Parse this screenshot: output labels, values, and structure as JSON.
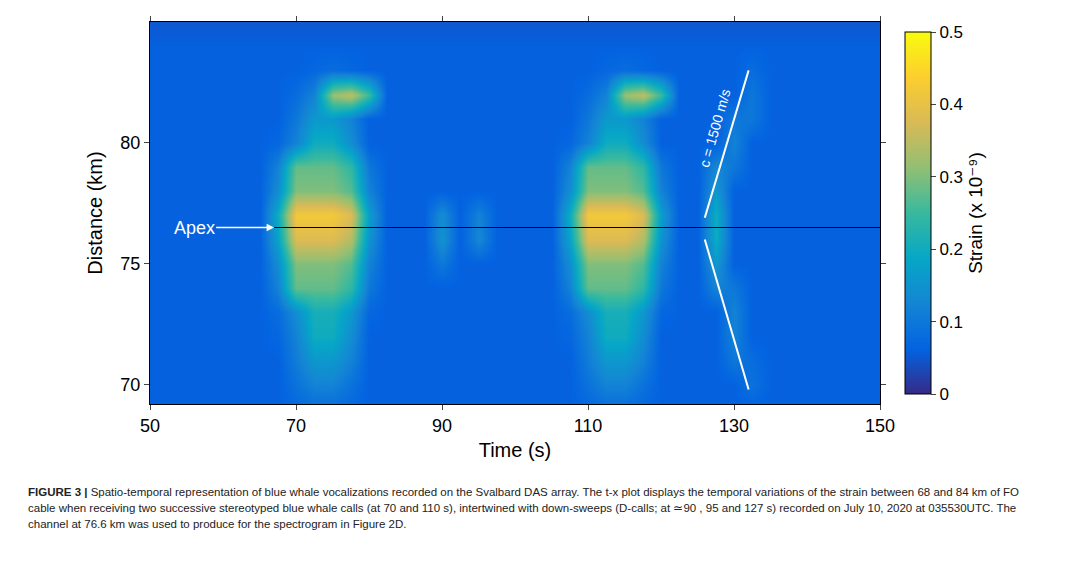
{
  "chart_data": {
    "type": "heatmap",
    "x_label": "Time (s)",
    "y_label": "Distance (km)",
    "xlim": [
      50,
      150
    ],
    "xticks": [
      50,
      70,
      90,
      110,
      130,
      150
    ],
    "ylim": [
      69.2,
      85
    ],
    "yticks": [
      70,
      75,
      80
    ],
    "zlim": [
      0,
      0.5
    ],
    "zticks": [
      0,
      0.1,
      0.2,
      0.3,
      0.4,
      0.5
    ],
    "colorbar_title": "Strain (x 10⁻⁹)",
    "annotations": [
      "Apex",
      "c = 1500 m/s"
    ],
    "x": [
      50,
      52.5,
      55,
      57.5,
      60,
      62.5,
      65,
      67.5,
      70,
      72.5,
      75,
      77.5,
      80,
      82.5,
      85,
      87.5,
      90,
      92.5,
      95,
      97.5,
      100,
      102.5,
      105,
      107.5,
      110,
      112.5,
      115,
      117.5,
      120,
      122.5,
      125,
      127.5,
      130,
      132.5,
      135,
      137.5,
      140,
      142.5,
      145,
      147.5,
      150
    ],
    "y": [
      69,
      70,
      71,
      72,
      73,
      74,
      75,
      76,
      77,
      78,
      79,
      80,
      81,
      82,
      83,
      84,
      85
    ],
    "z": [
      [
        0.06,
        0.06,
        0.06,
        0.06,
        0.06,
        0.06,
        0.06,
        0.06,
        0.07,
        0.08,
        0.08,
        0.07,
        0.06,
        0.06,
        0.06,
        0.06,
        0.06,
        0.06,
        0.06,
        0.06,
        0.06,
        0.06,
        0.06,
        0.06,
        0.07,
        0.08,
        0.08,
        0.07,
        0.06,
        0.06,
        0.06,
        0.06,
        0.06,
        0.06,
        0.06,
        0.06,
        0.06,
        0.06,
        0.06,
        0.06,
        0.06
      ],
      [
        0.06,
        0.06,
        0.06,
        0.06,
        0.06,
        0.06,
        0.06,
        0.06,
        0.09,
        0.12,
        0.12,
        0.09,
        0.06,
        0.06,
        0.06,
        0.06,
        0.06,
        0.06,
        0.06,
        0.06,
        0.06,
        0.06,
        0.06,
        0.06,
        0.09,
        0.12,
        0.12,
        0.09,
        0.06,
        0.06,
        0.06,
        0.06,
        0.06,
        0.09,
        0.06,
        0.06,
        0.06,
        0.06,
        0.06,
        0.06,
        0.06
      ],
      [
        0.06,
        0.06,
        0.06,
        0.06,
        0.06,
        0.06,
        0.06,
        0.06,
        0.11,
        0.16,
        0.16,
        0.12,
        0.06,
        0.06,
        0.06,
        0.06,
        0.06,
        0.06,
        0.06,
        0.06,
        0.06,
        0.06,
        0.06,
        0.06,
        0.11,
        0.16,
        0.16,
        0.12,
        0.06,
        0.06,
        0.06,
        0.06,
        0.1,
        0.08,
        0.06,
        0.06,
        0.06,
        0.06,
        0.06,
        0.06,
        0.06
      ],
      [
        0.06,
        0.06,
        0.06,
        0.06,
        0.06,
        0.06,
        0.06,
        0.07,
        0.12,
        0.2,
        0.2,
        0.14,
        0.06,
        0.06,
        0.06,
        0.06,
        0.06,
        0.06,
        0.06,
        0.06,
        0.06,
        0.06,
        0.06,
        0.07,
        0.12,
        0.2,
        0.2,
        0.14,
        0.06,
        0.06,
        0.06,
        0.06,
        0.12,
        0.06,
        0.06,
        0.06,
        0.06,
        0.06,
        0.06,
        0.06,
        0.06
      ],
      [
        0.06,
        0.06,
        0.06,
        0.06,
        0.06,
        0.06,
        0.06,
        0.08,
        0.14,
        0.21,
        0.21,
        0.16,
        0.07,
        0.06,
        0.06,
        0.06,
        0.06,
        0.06,
        0.06,
        0.06,
        0.06,
        0.06,
        0.06,
        0.08,
        0.14,
        0.21,
        0.21,
        0.16,
        0.07,
        0.06,
        0.06,
        0.06,
        0.12,
        0.06,
        0.06,
        0.06,
        0.06,
        0.06,
        0.06,
        0.06,
        0.06
      ],
      [
        0.06,
        0.06,
        0.06,
        0.06,
        0.06,
        0.06,
        0.06,
        0.12,
        0.28,
        0.28,
        0.28,
        0.24,
        0.1,
        0.06,
        0.06,
        0.06,
        0.06,
        0.06,
        0.06,
        0.06,
        0.06,
        0.06,
        0.06,
        0.12,
        0.28,
        0.28,
        0.28,
        0.24,
        0.1,
        0.06,
        0.06,
        0.12,
        0.1,
        0.06,
        0.06,
        0.06,
        0.06,
        0.06,
        0.06,
        0.06,
        0.06
      ],
      [
        0.06,
        0.06,
        0.06,
        0.06,
        0.06,
        0.06,
        0.06,
        0.14,
        0.3,
        0.3,
        0.3,
        0.27,
        0.12,
        0.06,
        0.06,
        0.06,
        0.1,
        0.06,
        0.06,
        0.06,
        0.06,
        0.06,
        0.06,
        0.14,
        0.3,
        0.3,
        0.3,
        0.27,
        0.12,
        0.06,
        0.06,
        0.16,
        0.06,
        0.06,
        0.06,
        0.06,
        0.06,
        0.06,
        0.06,
        0.06,
        0.06
      ],
      [
        0.06,
        0.06,
        0.06,
        0.06,
        0.06,
        0.06,
        0.06,
        0.18,
        0.38,
        0.38,
        0.38,
        0.34,
        0.15,
        0.06,
        0.06,
        0.06,
        0.15,
        0.06,
        0.13,
        0.06,
        0.06,
        0.06,
        0.06,
        0.18,
        0.38,
        0.38,
        0.38,
        0.34,
        0.15,
        0.06,
        0.06,
        0.2,
        0.06,
        0.06,
        0.06,
        0.06,
        0.06,
        0.06,
        0.06,
        0.06,
        0.06
      ],
      [
        0.06,
        0.06,
        0.06,
        0.06,
        0.06,
        0.06,
        0.06,
        0.2,
        0.42,
        0.42,
        0.42,
        0.38,
        0.17,
        0.06,
        0.06,
        0.06,
        0.14,
        0.06,
        0.12,
        0.06,
        0.06,
        0.06,
        0.06,
        0.2,
        0.42,
        0.42,
        0.42,
        0.38,
        0.17,
        0.06,
        0.06,
        0.2,
        0.06,
        0.06,
        0.06,
        0.06,
        0.06,
        0.06,
        0.06,
        0.06,
        0.06
      ],
      [
        0.06,
        0.06,
        0.06,
        0.06,
        0.06,
        0.06,
        0.06,
        0.14,
        0.3,
        0.3,
        0.3,
        0.27,
        0.12,
        0.06,
        0.06,
        0.06,
        0.06,
        0.06,
        0.06,
        0.06,
        0.06,
        0.06,
        0.06,
        0.14,
        0.3,
        0.3,
        0.3,
        0.27,
        0.12,
        0.06,
        0.06,
        0.16,
        0.06,
        0.06,
        0.06,
        0.06,
        0.06,
        0.06,
        0.06,
        0.06,
        0.06
      ],
      [
        0.06,
        0.06,
        0.06,
        0.06,
        0.06,
        0.06,
        0.06,
        0.12,
        0.28,
        0.28,
        0.28,
        0.24,
        0.1,
        0.06,
        0.06,
        0.06,
        0.06,
        0.06,
        0.06,
        0.06,
        0.06,
        0.06,
        0.06,
        0.12,
        0.28,
        0.28,
        0.28,
        0.24,
        0.1,
        0.06,
        0.06,
        0.13,
        0.1,
        0.06,
        0.06,
        0.06,
        0.06,
        0.06,
        0.06,
        0.06,
        0.06
      ],
      [
        0.06,
        0.06,
        0.06,
        0.06,
        0.06,
        0.06,
        0.06,
        0.07,
        0.12,
        0.2,
        0.2,
        0.14,
        0.06,
        0.06,
        0.06,
        0.06,
        0.06,
        0.06,
        0.06,
        0.06,
        0.06,
        0.06,
        0.06,
        0.07,
        0.12,
        0.2,
        0.2,
        0.14,
        0.06,
        0.06,
        0.06,
        0.06,
        0.12,
        0.06,
        0.06,
        0.06,
        0.06,
        0.06,
        0.06,
        0.06,
        0.06
      ],
      [
        0.06,
        0.06,
        0.06,
        0.06,
        0.06,
        0.06,
        0.06,
        0.06,
        0.1,
        0.16,
        0.16,
        0.12,
        0.06,
        0.06,
        0.06,
        0.06,
        0.06,
        0.06,
        0.06,
        0.06,
        0.06,
        0.06,
        0.06,
        0.06,
        0.1,
        0.16,
        0.16,
        0.12,
        0.06,
        0.06,
        0.06,
        0.06,
        0.1,
        0.1,
        0.06,
        0.06,
        0.06,
        0.06,
        0.06,
        0.06,
        0.06
      ],
      [
        0.06,
        0.06,
        0.06,
        0.06,
        0.06,
        0.06,
        0.06,
        0.06,
        0.08,
        0.12,
        0.32,
        0.35,
        0.25,
        0.06,
        0.06,
        0.06,
        0.06,
        0.06,
        0.06,
        0.06,
        0.06,
        0.06,
        0.06,
        0.06,
        0.08,
        0.12,
        0.32,
        0.35,
        0.25,
        0.06,
        0.06,
        0.06,
        0.06,
        0.1,
        0.06,
        0.06,
        0.06,
        0.06,
        0.06,
        0.06,
        0.06
      ],
      [
        0.06,
        0.06,
        0.06,
        0.06,
        0.06,
        0.06,
        0.06,
        0.06,
        0.06,
        0.07,
        0.08,
        0.07,
        0.06,
        0.06,
        0.06,
        0.06,
        0.06,
        0.06,
        0.06,
        0.06,
        0.06,
        0.06,
        0.06,
        0.06,
        0.06,
        0.07,
        0.08,
        0.07,
        0.06,
        0.06,
        0.06,
        0.06,
        0.06,
        0.08,
        0.06,
        0.06,
        0.06,
        0.06,
        0.06,
        0.06,
        0.06
      ],
      [
        0.06,
        0.06,
        0.06,
        0.06,
        0.06,
        0.06,
        0.06,
        0.06,
        0.06,
        0.06,
        0.06,
        0.06,
        0.06,
        0.06,
        0.06,
        0.06,
        0.06,
        0.06,
        0.06,
        0.06,
        0.06,
        0.06,
        0.06,
        0.06,
        0.06,
        0.06,
        0.06,
        0.06,
        0.06,
        0.06,
        0.06,
        0.06,
        0.06,
        0.06,
        0.06,
        0.06,
        0.06,
        0.06,
        0.06,
        0.06,
        0.06
      ],
      [
        0.05,
        0.05,
        0.05,
        0.05,
        0.05,
        0.05,
        0.05,
        0.05,
        0.05,
        0.05,
        0.05,
        0.05,
        0.05,
        0.05,
        0.05,
        0.05,
        0.05,
        0.05,
        0.05,
        0.05,
        0.05,
        0.05,
        0.05,
        0.05,
        0.05,
        0.05,
        0.05,
        0.05,
        0.05,
        0.05,
        0.05,
        0.05,
        0.05,
        0.05,
        0.05,
        0.05,
        0.05,
        0.05,
        0.05,
        0.05,
        0.05
      ]
    ]
  },
  "caption_label": "FIGURE 3 |",
  "caption": "Spatio-temporal representation of blue whale vocalizations recorded on the Svalbard DAS array. The t-x plot displays the temporal variations of the strain between 68 and 84 km of FO cable when receiving two successive stereotyped blue whale calls (at 70 and 110 s), intertwined with down-sweeps (D-calls; at ≃90 , 95 and 127 s) recorded on July 10, 2020 at 035530UTC. The channel at 76.6 km was used to produce for the spectrogram in Figure 2D."
}
